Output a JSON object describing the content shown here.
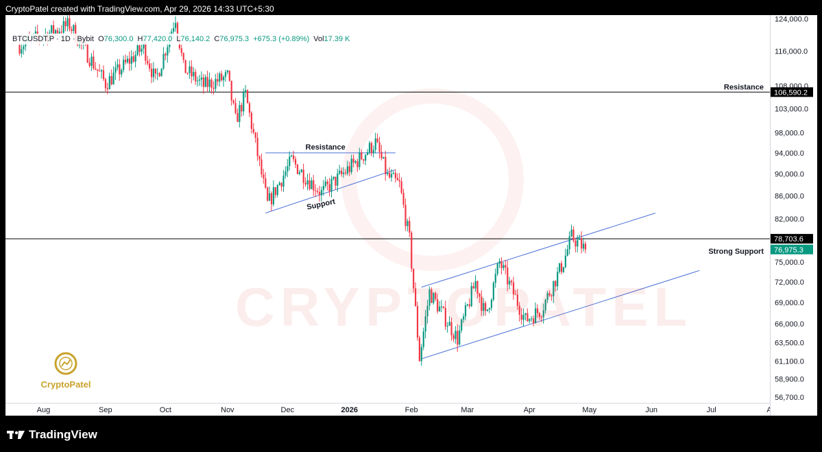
{
  "header": {
    "credit": "CryptoPatel created with TradingView.com, Apr 29, 2026 14:33 UTC+5:30"
  },
  "info_bar": {
    "symbol": "BTCUSDT.P",
    "timeframe": "1D",
    "exchange": "Bybit",
    "open_label": "O",
    "open": "76,300.0",
    "high_label": "H",
    "high": "77,420.0",
    "low_label": "L",
    "low": "76,140.2",
    "close_label": "C",
    "close": "76,975.3",
    "change": "+675.3 (+0.89%)",
    "vol_label": "Vol",
    "vol": "17.39 K"
  },
  "watermark": {
    "brand": "CryptoPatel",
    "text": "CRYPTOPATEL"
  },
  "footer": {
    "brand": "TradingView"
  },
  "colors": {
    "up": "#089981",
    "down": "#f23645",
    "channel": "#4a72d8",
    "level": "#000000"
  },
  "chart_data": {
    "type": "candlestick",
    "x_ticks": [
      "Aug",
      "Sep",
      "Oct",
      "Nov",
      "Dec",
      "2026",
      "Feb",
      "Mar",
      "Apr",
      "May",
      "Jun",
      "Jul",
      "Aug"
    ],
    "y_ticks": [
      124000,
      116000,
      108000,
      103000,
      98000,
      94000,
      90000,
      86000,
      82000,
      75000,
      72000,
      69000,
      66000,
      63500,
      61100,
      58900,
      56700
    ],
    "y_tick_labels": [
      "124,000.0",
      "116,000.0",
      "108,000.0",
      "103,000.0",
      "98,000.0",
      "94,000.0",
      "90,000.0",
      "86,000.0",
      "82,000.0",
      "75,000.0",
      "72,000.0",
      "69,000.0",
      "66,000.0",
      "63,500.0",
      "61,100.0",
      "58,900.0",
      "56,700.0"
    ],
    "ylim": [
      56000,
      125000
    ],
    "y_scale": "log",
    "price_labels": [
      {
        "text": "106,590.2",
        "value": 106590.2,
        "style": "black"
      },
      {
        "text": "78,703.6",
        "value": 78703.6,
        "style": "black"
      },
      {
        "text": "76,975.3",
        "value": 76975.3,
        "style": "green"
      }
    ],
    "levels": [
      {
        "name": "Resistance",
        "value": 106590.2
      },
      {
        "name": "Strong Support",
        "value": 78703.6
      }
    ],
    "annotations": [
      {
        "text": "Resistance",
        "date": "2025-12-20",
        "price": 94000
      },
      {
        "text": "Support",
        "date": "2025-12-18",
        "price": 85800
      }
    ],
    "lines": [
      {
        "name": "range-resistance",
        "p1": [
          "2025-11-20",
          94000
        ],
        "p2": [
          "2026-01-24",
          94000
        ]
      },
      {
        "name": "range-support",
        "p1": [
          "2025-11-20",
          83000
        ],
        "p2": [
          "2026-01-24",
          90800
        ]
      },
      {
        "name": "channel-upper",
        "p1": [
          "2026-02-06",
          71200
        ],
        "p2": [
          "2026-06-03",
          83000
        ]
      },
      {
        "name": "channel-lower",
        "p1": [
          "2026-02-06",
          61400
        ],
        "p2": [
          "2026-06-25",
          73700
        ]
      }
    ],
    "anchors": [
      [
        "2025-07-20",
        117500
      ],
      [
        "2025-08-14",
        122500
      ],
      [
        "2025-09-01",
        108500
      ],
      [
        "2025-09-20",
        117000
      ],
      [
        "2025-09-26",
        109000
      ],
      [
        "2025-10-06",
        124500
      ],
      [
        "2025-10-10",
        112000
      ],
      [
        "2025-10-20",
        108000
      ],
      [
        "2025-11-01",
        110000
      ],
      [
        "2025-11-05",
        100500
      ],
      [
        "2025-11-10",
        106000
      ],
      [
        "2025-11-21",
        84500
      ],
      [
        "2025-12-03",
        92500
      ],
      [
        "2025-12-10",
        89500
      ],
      [
        "2025-12-18",
        86500
      ],
      [
        "2026-01-05",
        92500
      ],
      [
        "2026-01-14",
        96000
      ],
      [
        "2026-01-20",
        89500
      ],
      [
        "2026-01-26",
        88000
      ],
      [
        "2026-01-31",
        78500
      ],
      [
        "2026-02-05",
        61500
      ],
      [
        "2026-02-10",
        70500
      ],
      [
        "2026-02-24",
        64000
      ],
      [
        "2026-03-05",
        72000
      ],
      [
        "2026-03-10",
        67000
      ],
      [
        "2026-03-17",
        75000
      ],
      [
        "2026-03-30",
        66500
      ],
      [
        "2026-04-07",
        68000
      ],
      [
        "2026-04-18",
        75000
      ],
      [
        "2026-04-22",
        79000
      ],
      [
        "2026-04-29",
        76975
      ]
    ]
  }
}
